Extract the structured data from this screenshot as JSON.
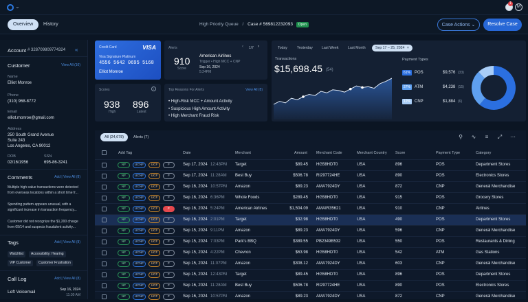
{
  "header": {
    "notification_count": "1"
  },
  "tabs": [
    {
      "label": "Overview"
    },
    {
      "label": "History"
    }
  ],
  "breadcrumb": {
    "queue": "High Priority Queue",
    "sep": "/",
    "case": "Case # 569812232093",
    "status": "Open"
  },
  "actions": {
    "case_actions": "Case Actions",
    "resolve": "Resolve Case"
  },
  "sidebar": {
    "account_label": "Account",
    "account_number": "# 328709809774324",
    "customer": {
      "title": "Customer",
      "view_all": "View All (10)",
      "name_label": "Name",
      "name": "Elliot Monroe",
      "phone_label": "Phone",
      "phone": "(310) 968-8772",
      "email_label": "Email",
      "email": "elliot.monroe@gmail.com",
      "address_label": "Address",
      "address1": "250 South Grand Avenue",
      "address2": "Suite 243",
      "address3": "Los Angeles, CA 90012",
      "dob_label": "DOB",
      "dob": "02/16/1956",
      "ssn_label": "SSN",
      "ssn": "695-86-3241"
    },
    "comments": {
      "title": "Comments",
      "links": "Add | View All (8)",
      "items": [
        "Multiple high-value transactions were detected from overseas locations within a short time fr...",
        "Spending pattern appears unusual, with a significant increase in transaction frequency...",
        "Customer did not recognize the $1,200 charge from 09/14 and suspects fraudulent activity..."
      ]
    },
    "tags": {
      "title": "Tags",
      "links": "Add | View All (8)",
      "items": [
        "Watchlist",
        "Accessibility: Hearing",
        "VIP Customer",
        "Customer Frustration"
      ]
    },
    "calllog": {
      "title": "Call Log",
      "links": "Add | View All (8)",
      "item_title": "Left Voicemail",
      "item_date": "Sep 16, 2024",
      "item_time": "11:30 AM"
    }
  },
  "credit_card": {
    "label": "Credit Card",
    "brand": "VISA",
    "product": "Visa Signature Platinum",
    "number": "4556 5642 0695 5168",
    "holder": "Elliot Monroe"
  },
  "alerts_card": {
    "title": "Alerts",
    "pager": "1/7",
    "score": "910",
    "score_label": "Score",
    "merchant": "American Airlines",
    "trigger": "Trigger • High MCC + CNP",
    "date": "Sep 16, 2024",
    "time": "5:24PM"
  },
  "scores_card": {
    "title": "Scores",
    "high": "938",
    "high_label": "High",
    "latest": "896",
    "latest_label": "Latest"
  },
  "reasons_card": {
    "title": "Top Reasons For Alerts",
    "view_all": "View All (8)",
    "items": [
      "High-Risk MCC + Amount Activity",
      "Suspicious High Amount Activity",
      "High Merchant Fraud Risk"
    ]
  },
  "transactions": {
    "filters": [
      "Today",
      "Yesterday",
      "Last Week",
      "Last Month"
    ],
    "date_range": "Sep 17 – 25, 2024",
    "title": "Transactions",
    "total": "$15,698.45",
    "count": "(54)",
    "payment_title": "Payment Types",
    "payment_types": [
      {
        "pct": "61%",
        "name": "POS",
        "amount": "$9,576",
        "count": "(33)",
        "color": "#2b6fe0"
      },
      {
        "pct": "27%",
        "name": "ATM",
        "amount": "$4,238",
        "count": "(15)",
        "color": "#5fa0f0"
      },
      {
        "pct": "12%",
        "name": "CNP",
        "amount": "$1,884",
        "count": "(6)",
        "color": "#a9cdf7"
      }
    ]
  },
  "chart_data": {
    "type": "area",
    "x": [
      0,
      1,
      2,
      3,
      4,
      5,
      6,
      7,
      8,
      9,
      10,
      11,
      12,
      13,
      14,
      15,
      16,
      17,
      18,
      19,
      20
    ],
    "y": [
      32,
      40,
      36,
      48,
      44,
      52,
      58,
      55,
      66,
      62,
      70,
      68,
      64,
      72,
      80,
      76,
      78,
      74,
      86,
      92,
      100
    ]
  },
  "donut": {
    "type": "pie",
    "values": [
      61,
      27,
      12
    ],
    "labels": [
      "POS",
      "ATM",
      "CNP"
    ]
  },
  "table": {
    "tab_all": "All (24,678)",
    "tab_alerts": "Alerts (7)",
    "headers": [
      "Add Tag",
      "Date",
      "Merchant",
      "Amount",
      "Merchant Code",
      "Merchant Country",
      "Score",
      "Payment Type",
      "Category"
    ],
    "tag_labels": [
      "NF",
      "UCNF",
      "UCF",
      "F"
    ],
    "rows": [
      {
        "date": "Sep 17, 2024",
        "time": "12:43PM",
        "merchant": "Target",
        "amount": "$89.45",
        "code": "HG58HDT0",
        "country": "USA",
        "score": "896",
        "ptype": "POS",
        "category": "Department Stores",
        "flag": false,
        "sel": false
      },
      {
        "date": "Sep 17, 2024",
        "time": "11:28AM",
        "merchant": "Best Buy",
        "amount": "$506.78",
        "code": "RI297724HE",
        "country": "USA",
        "score": "890",
        "ptype": "POS",
        "category": "Electronics Stores",
        "flag": false,
        "sel": false
      },
      {
        "date": "Sep 16, 2024",
        "time": "10:57PM",
        "merchant": "Amazon",
        "amount": "$89.23",
        "code": "AMA7924DY",
        "country": "USA",
        "score": "872",
        "ptype": "CNP",
        "category": "General Merchandise",
        "flag": false,
        "sel": false
      },
      {
        "date": "Sep 16, 2024",
        "time": "6:36PM",
        "merchant": "Whole Foods",
        "amount": "$289.45",
        "code": "HG58HDT0",
        "country": "USA",
        "score": "915",
        "ptype": "POS",
        "category": "Grocery Stores",
        "flag": false,
        "sel": false
      },
      {
        "date": "Sep 16, 2024",
        "time": "5:24PM",
        "merchant": "American Airlines",
        "amount": "$1,504.09",
        "code": "AMAIR35621",
        "country": "USA",
        "score": "910",
        "ptype": "CNP",
        "category": "Airlines",
        "flag": true,
        "sel": false
      },
      {
        "date": "Sep 16, 2024",
        "time": "2:01PM",
        "merchant": "Target",
        "amount": "$32.98",
        "code": "HG58HDT0",
        "country": "USA",
        "score": "490",
        "ptype": "POS",
        "category": "Department Stores",
        "flag": false,
        "sel": true
      },
      {
        "date": "Sep 15, 2024",
        "time": "9:11PM",
        "merchant": "Amazon",
        "amount": "$89.23",
        "code": "AMA7924DY",
        "country": "USA",
        "score": "596",
        "ptype": "CNP",
        "category": "General Merchandise",
        "flag": false,
        "sel": false
      },
      {
        "date": "Sep 15, 2024",
        "time": "7:03PM",
        "merchant": "Park's BBQ",
        "amount": "$389.55",
        "code": "PB2349B532",
        "country": "USA",
        "score": "550",
        "ptype": "POS",
        "category": "Restaurants & Dining",
        "flag": false,
        "sel": false
      },
      {
        "date": "Sep 15, 2024",
        "time": "4:22PM",
        "merchant": "Chevron",
        "amount": "$63.98",
        "code": "HG58HDT0",
        "country": "USA",
        "score": "542",
        "ptype": "ATM",
        "category": "Gas Stations",
        "flag": false,
        "sel": false
      },
      {
        "date": "Sep 15, 2024",
        "time": "11:07PM",
        "merchant": "Amazon",
        "amount": "$308.12",
        "code": "AMA7924DY",
        "country": "USA",
        "score": "603",
        "ptype": "CNP",
        "category": "General Merchandise",
        "flag": false,
        "sel": false
      },
      {
        "date": "Sep 15, 2024",
        "time": "12:43PM",
        "merchant": "Target",
        "amount": "$89.45",
        "code": "HG58HDT0",
        "country": "USA",
        "score": "896",
        "ptype": "POS",
        "category": "Department Stores",
        "flag": false,
        "sel": false
      },
      {
        "date": "Sep 16, 2024",
        "time": "11:28AM",
        "merchant": "Best Buy",
        "amount": "$506.78",
        "code": "RI297724HE",
        "country": "USA",
        "score": "890",
        "ptype": "POS",
        "category": "Electronics Stores",
        "flag": false,
        "sel": false
      },
      {
        "date": "Sep 16, 2024",
        "time": "10:57PM",
        "merchant": "Amazon",
        "amount": "$89.23",
        "code": "AMA7924DY",
        "country": "USA",
        "score": "872",
        "ptype": "CNP",
        "category": "General Merchandise",
        "flag": false,
        "sel": false
      }
    ]
  }
}
